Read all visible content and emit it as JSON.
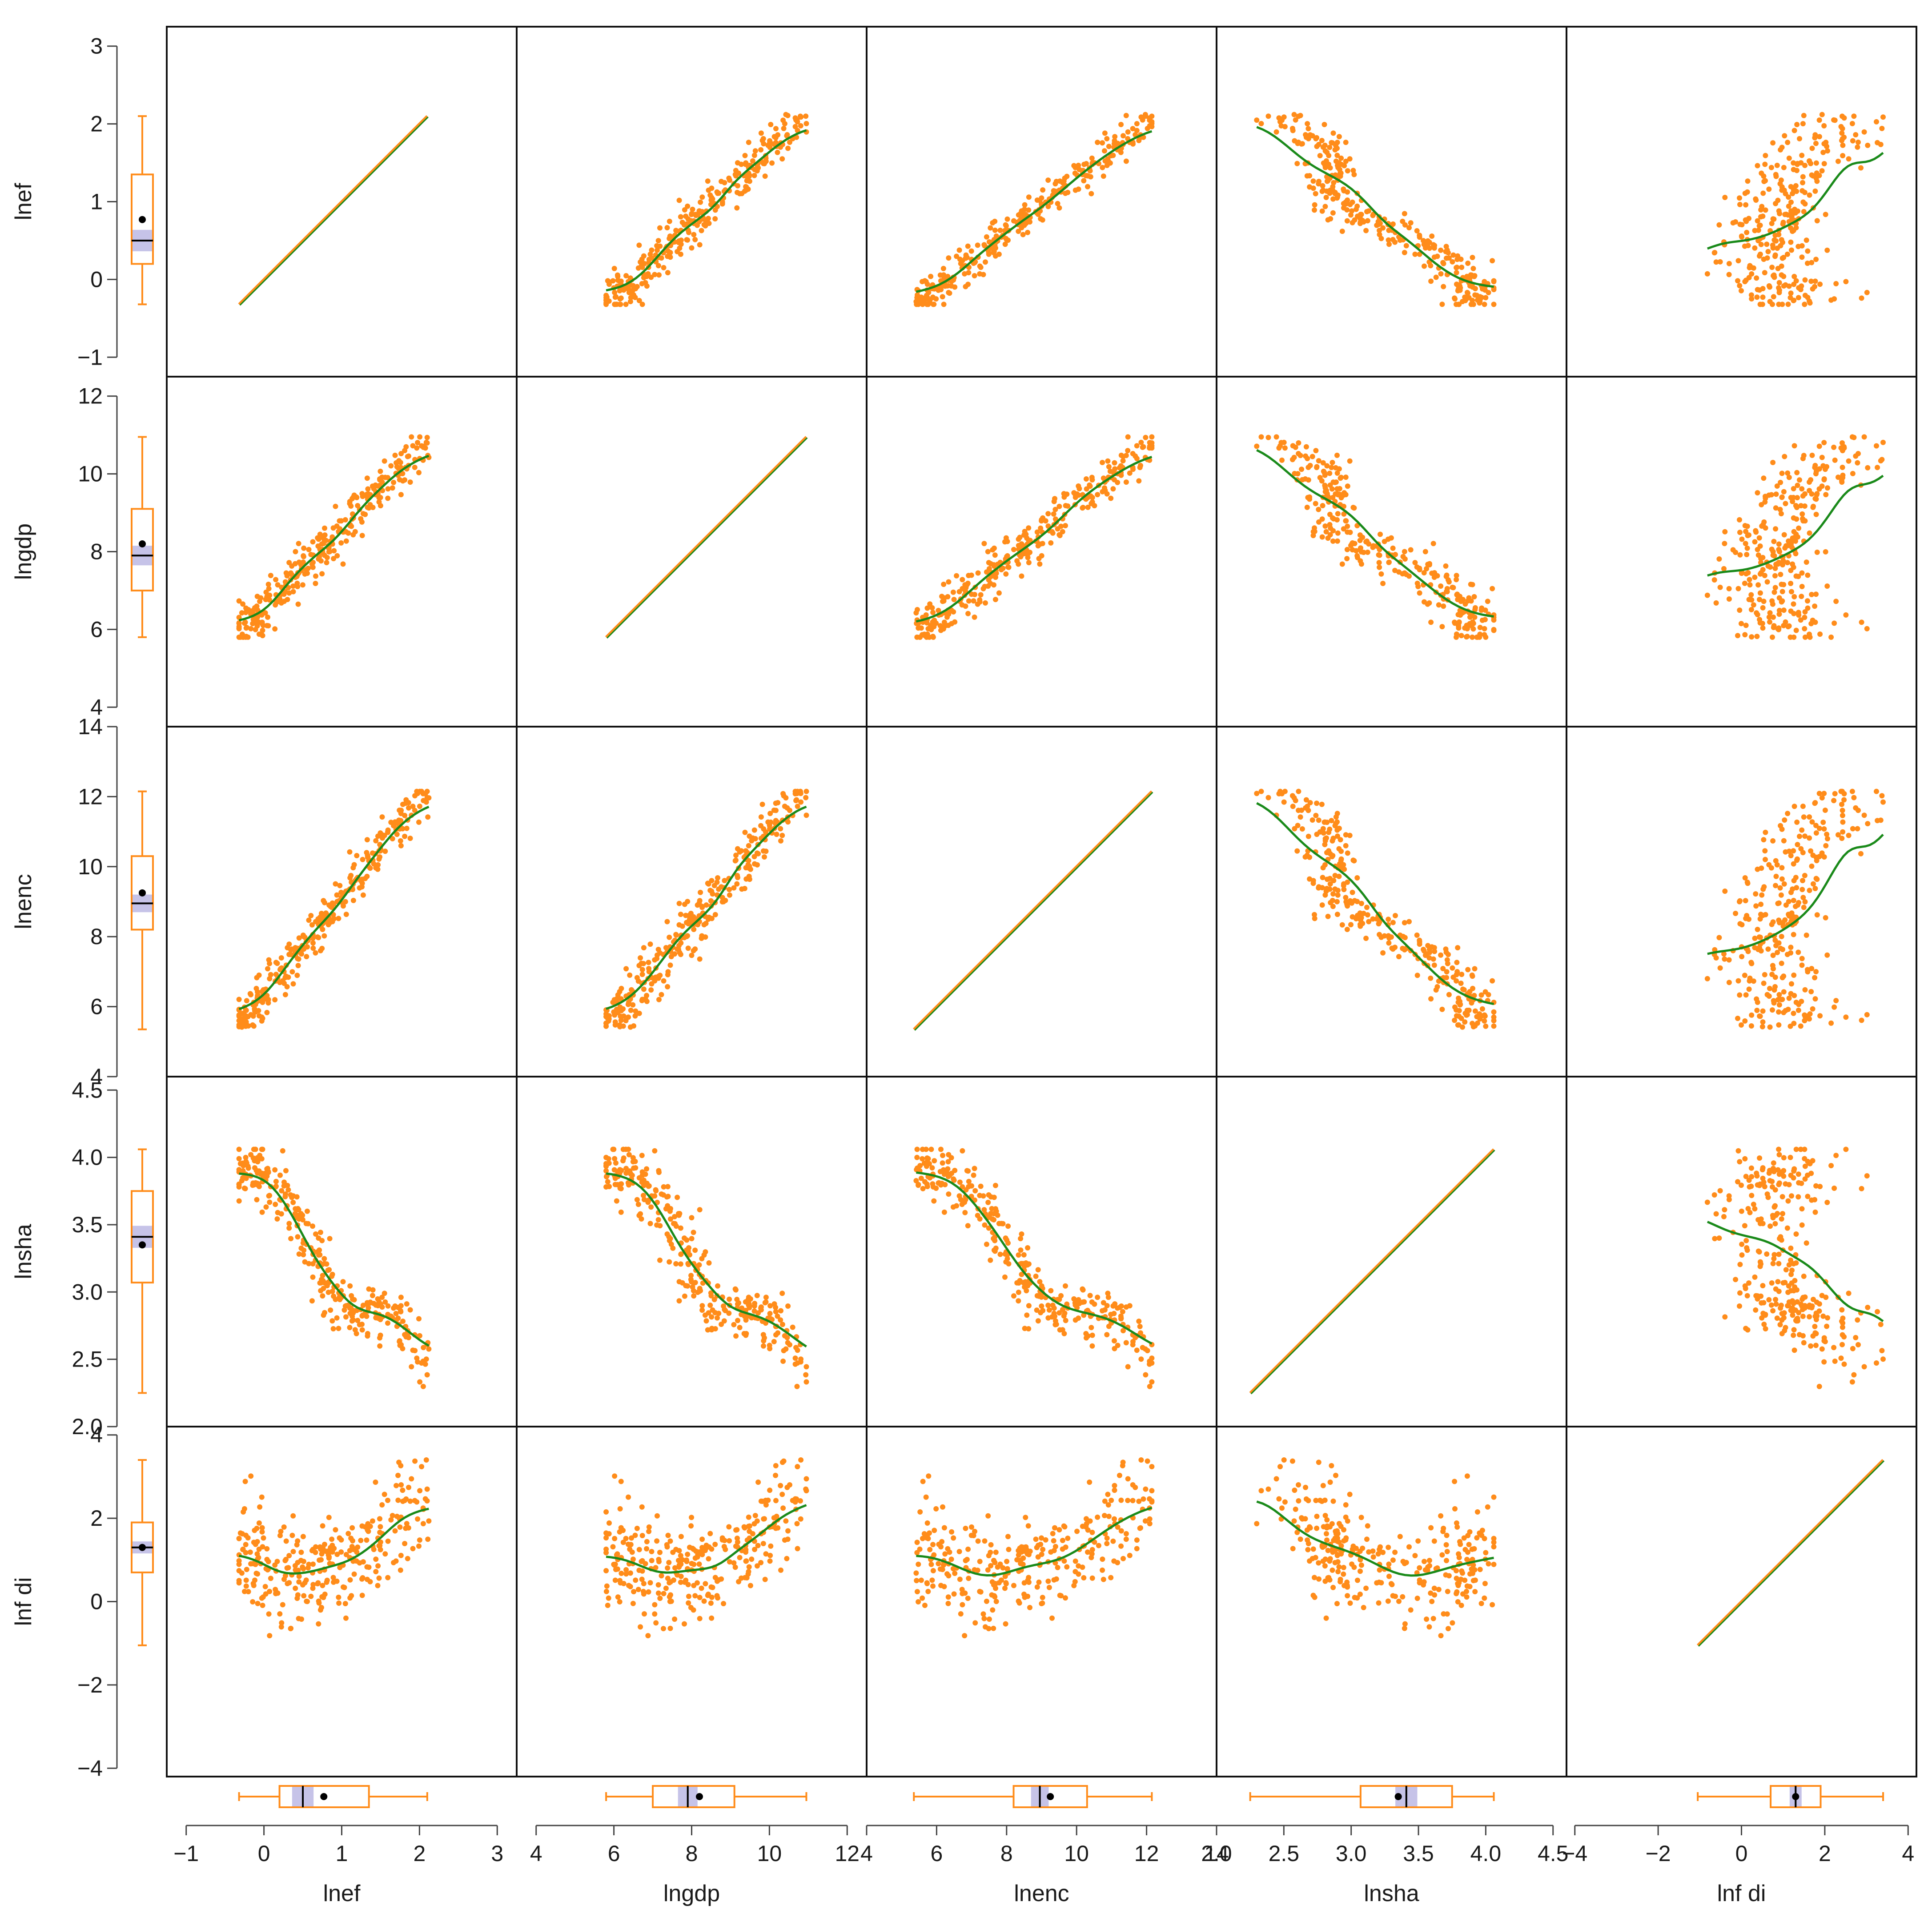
{
  "chart_data": {
    "type": "scatter",
    "variables": [
      "lnef",
      "lngdp",
      "lnenc",
      "lnsha",
      "lnfdi"
    ],
    "labels": {
      "lnef": "lnef",
      "lngdp": "lngdp",
      "lnenc": "lnenc",
      "lnsha": "lnsha",
      "lnfdi": "lnf di"
    },
    "ranges": {
      "lnef": [
        -1.25,
        3.25
      ],
      "lngdp": [
        3.5,
        12.5
      ],
      "lnenc": [
        4.0,
        14.0
      ],
      "lnsha": [
        2.0,
        4.6
      ],
      "lnfdi": [
        -4.2,
        4.2
      ]
    },
    "ticks": {
      "lnef": [
        -1,
        0,
        1,
        2,
        3
      ],
      "lngdp": [
        4,
        6,
        8,
        10,
        12
      ],
      "lnenc": [
        4,
        6,
        8,
        10,
        12,
        14
      ],
      "lnsha": [
        2.0,
        2.5,
        3.0,
        3.5,
        4.0,
        4.5
      ],
      "lnfdi": [
        -4,
        -2,
        0,
        2,
        4
      ]
    },
    "tick_labels": {
      "lnef": [
        "−1",
        "0",
        "1",
        "2",
        "3"
      ],
      "lngdp": [
        "4",
        "6",
        "8",
        "10",
        "12"
      ],
      "lnenc": [
        "4",
        "6",
        "8",
        "10",
        "12",
        "14"
      ],
      "lnsha": [
        "2.0",
        "2.5",
        "3.0",
        "3.5",
        "4.0",
        "4.5"
      ],
      "lnfdi": [
        "−4",
        "−2",
        "0",
        "2",
        "4"
      ]
    },
    "boxplots": {
      "lnef": {
        "min": -0.32,
        "q1": 0.2,
        "median": 0.5,
        "q3": 1.35,
        "max": 2.1,
        "mean": 0.77
      },
      "lngdp": {
        "min": 5.8,
        "q1": 7.0,
        "median": 7.9,
        "q3": 9.1,
        "max": 10.95,
        "mean": 8.2
      },
      "lnenc": {
        "min": 5.35,
        "q1": 8.2,
        "median": 8.95,
        "q3": 10.3,
        "max": 12.15,
        "mean": 9.25
      },
      "lnsha": {
        "min": 2.25,
        "q1": 3.07,
        "median": 3.41,
        "q3": 3.75,
        "max": 4.06,
        "mean": 3.35
      },
      "lnfdi": {
        "min": -1.05,
        "q1": 0.7,
        "median": 1.3,
        "q3": 1.9,
        "max": 3.4,
        "mean": 1.3
      }
    },
    "smoother": "loess",
    "colors": {
      "points": "#ff8c1a",
      "smooth": "#1a8a1a",
      "boxplot": "#ff8c1a",
      "notch_band": "#c6c3e8",
      "mean_point": "#000000"
    }
  }
}
